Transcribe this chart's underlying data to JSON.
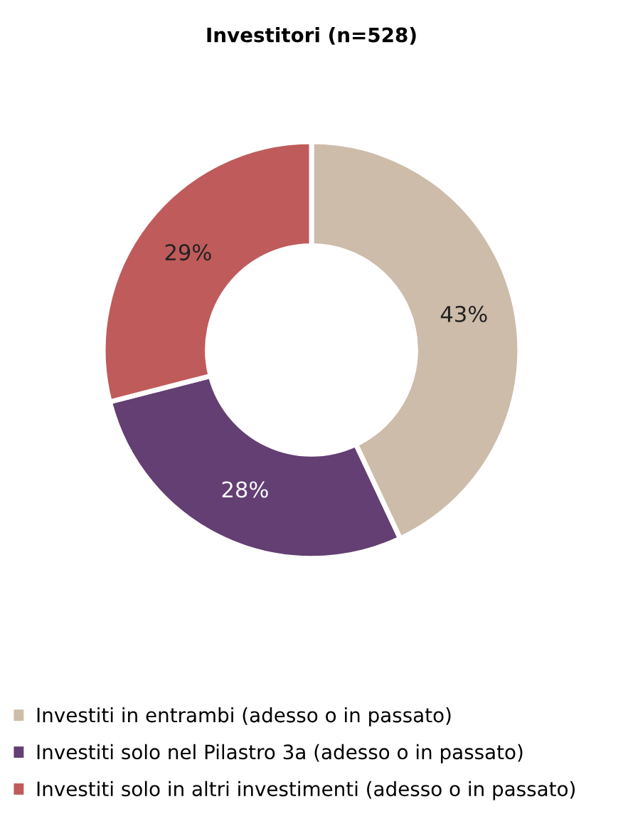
{
  "chart_data": {
    "type": "donut",
    "title": "Investitori (n=528)",
    "categories": [
      "Investiti in entrambi (adesso o in passato)",
      "Investiti solo nel Pilastro 3a (adesso o in passato)",
      "Investiti solo in altri investimenti (adesso o in passato)"
    ],
    "values": [
      43,
      28,
      29
    ],
    "colors": [
      "#cdbcaa",
      "#633f73",
      "#c05b5b"
    ],
    "value_labels": [
      "43%",
      "28%",
      "29%"
    ],
    "legend": "bottom"
  }
}
